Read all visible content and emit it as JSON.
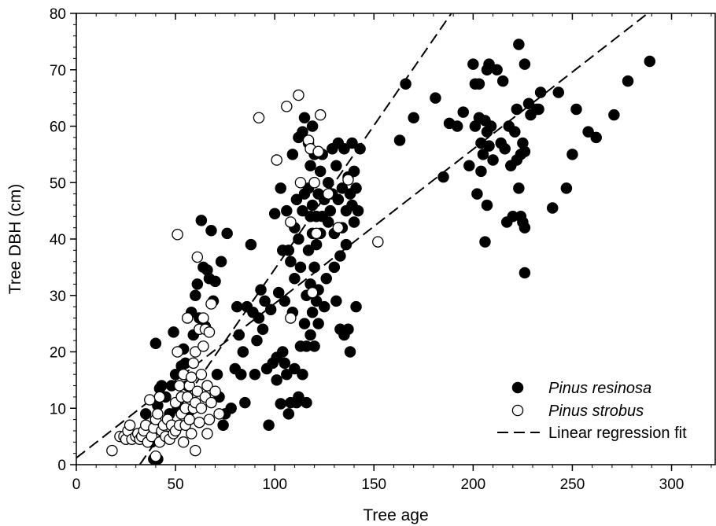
{
  "chart_data": {
    "type": "scatter",
    "xlabel": "Tree age",
    "ylabel": "Tree DBH (cm)",
    "xlim": [
      0,
      322
    ],
    "ylim": [
      0,
      80
    ],
    "x_ticks": [
      0,
      50,
      100,
      150,
      200,
      250,
      300
    ],
    "y_ticks": [
      0,
      10,
      20,
      30,
      40,
      50,
      60,
      70,
      80
    ],
    "legend_position": "bottom-right",
    "series": [
      {
        "name": "Pinus resinosa",
        "marker": "filled-circle",
        "color": "#000000",
        "points": [
          [
            35,
            9
          ],
          [
            37,
            5
          ],
          [
            38,
            4
          ],
          [
            39,
            1
          ],
          [
            40,
            21.5
          ],
          [
            41,
            1
          ],
          [
            41,
            10.5
          ],
          [
            42,
            13.5
          ],
          [
            43,
            14
          ],
          [
            44,
            7
          ],
          [
            45,
            12
          ],
          [
            46,
            5
          ],
          [
            47,
            9
          ],
          [
            48,
            14
          ],
          [
            49,
            23.5
          ],
          [
            50,
            16
          ],
          [
            51,
            10
          ],
          [
            53,
            17.5
          ],
          [
            54,
            20.5
          ],
          [
            55,
            18
          ],
          [
            56,
            14
          ],
          [
            57,
            9.5
          ],
          [
            58,
            27
          ],
          [
            59,
            23
          ],
          [
            60,
            30
          ],
          [
            61,
            32
          ],
          [
            62,
            26
          ],
          [
            63,
            43.3
          ],
          [
            64,
            35
          ],
          [
            65,
            24.5
          ],
          [
            66,
            34.5
          ],
          [
            67,
            33
          ],
          [
            68,
            41.5
          ],
          [
            69,
            29
          ],
          [
            70,
            32.5
          ],
          [
            71,
            16
          ],
          [
            72,
            12
          ],
          [
            73,
            36
          ],
          [
            74,
            7
          ],
          [
            75,
            9
          ],
          [
            76,
            41
          ],
          [
            78,
            10
          ],
          [
            80,
            17
          ],
          [
            81,
            28
          ],
          [
            82,
            23
          ],
          [
            83,
            16
          ],
          [
            84,
            20
          ],
          [
            85,
            11
          ],
          [
            86,
            28
          ],
          [
            88,
            39
          ],
          [
            89,
            27
          ],
          [
            90,
            16
          ],
          [
            91,
            22
          ],
          [
            92,
            26
          ],
          [
            93,
            31
          ],
          [
            94,
            24
          ],
          [
            95,
            29
          ],
          [
            96,
            17
          ],
          [
            97,
            7
          ],
          [
            98,
            27.5
          ],
          [
            99,
            18
          ],
          [
            100,
            44.5
          ],
          [
            101,
            15
          ],
          [
            101,
            19
          ],
          [
            102,
            30.5
          ],
          [
            103,
            10.8
          ],
          [
            103,
            49
          ],
          [
            104,
            20
          ],
          [
            104,
            38
          ],
          [
            105,
            18
          ],
          [
            105,
            29
          ],
          [
            106,
            16
          ],
          [
            106,
            45
          ],
          [
            107,
            9
          ],
          [
            107,
            38
          ],
          [
            108,
            11
          ],
          [
            108,
            36
          ],
          [
            109,
            27
          ],
          [
            109,
            55
          ],
          [
            110,
            17
          ],
          [
            110,
            33
          ],
          [
            110,
            42
          ],
          [
            111,
            11
          ],
          [
            111,
            47
          ],
          [
            112,
            12
          ],
          [
            112,
            40
          ],
          [
            112,
            58
          ],
          [
            113,
            21
          ],
          [
            113,
            35
          ],
          [
            114,
            16
          ],
          [
            114,
            45
          ],
          [
            114,
            59
          ],
          [
            115,
            25
          ],
          [
            115,
            48
          ],
          [
            115,
            61.5
          ],
          [
            116,
            11
          ],
          [
            116,
            21
          ],
          [
            116,
            30
          ],
          [
            117,
            38
          ],
          [
            117,
            49
          ],
          [
            117,
            57
          ],
          [
            118,
            23
          ],
          [
            118,
            32
          ],
          [
            118,
            44
          ],
          [
            118,
            53
          ],
          [
            119,
            27
          ],
          [
            119,
            41
          ],
          [
            119,
            46
          ],
          [
            119,
            60
          ],
          [
            120,
            21
          ],
          [
            120,
            35
          ],
          [
            120,
            50
          ],
          [
            120,
            55
          ],
          [
            121,
            29
          ],
          [
            121,
            39
          ],
          [
            121,
            44
          ],
          [
            122,
            25
          ],
          [
            122,
            31
          ],
          [
            122,
            48
          ],
          [
            123,
            41
          ],
          [
            123,
            52
          ],
          [
            124,
            44
          ],
          [
            124,
            55
          ],
          [
            125,
            28
          ],
          [
            125,
            47
          ],
          [
            126,
            33
          ],
          [
            127,
            43
          ],
          [
            127,
            50
          ],
          [
            128,
            45
          ],
          [
            129,
            48
          ],
          [
            129,
            56
          ],
          [
            130,
            35
          ],
          [
            130,
            41
          ],
          [
            131,
            53
          ],
          [
            131,
            29
          ],
          [
            132,
            47
          ],
          [
            132,
            57
          ],
          [
            133,
            24
          ],
          [
            133,
            37
          ],
          [
            134,
            42
          ],
          [
            134,
            49
          ],
          [
            135,
            56
          ],
          [
            135,
            23
          ],
          [
            136,
            45
          ],
          [
            136,
            39
          ],
          [
            137,
            24
          ],
          [
            137,
            51
          ],
          [
            138,
            48
          ],
          [
            138,
            20
          ],
          [
            139,
            46
          ],
          [
            139,
            57
          ],
          [
            140,
            43
          ],
          [
            140,
            52
          ],
          [
            141,
            28
          ],
          [
            141,
            49
          ],
          [
            142,
            45
          ],
          [
            143,
            56
          ],
          [
            163,
            57.5
          ],
          [
            166,
            67.5
          ],
          [
            170,
            61.5
          ],
          [
            181,
            65
          ],
          [
            185,
            51
          ],
          [
            188,
            60.5
          ],
          [
            192,
            60
          ],
          [
            195,
            62.5
          ],
          [
            198,
            53
          ],
          [
            200,
            71
          ],
          [
            201,
            60
          ],
          [
            201,
            67.5
          ],
          [
            202,
            48
          ],
          [
            203,
            61.5
          ],
          [
            203,
            67.5
          ],
          [
            204,
            52
          ],
          [
            204,
            57
          ],
          [
            205,
            55
          ],
          [
            206,
            61
          ],
          [
            206,
            39.5
          ],
          [
            207,
            70
          ],
          [
            207,
            46
          ],
          [
            207,
            59
          ],
          [
            208,
            71
          ],
          [
            208,
            56.5
          ],
          [
            209,
            60
          ],
          [
            210,
            54
          ],
          [
            212,
            70
          ],
          [
            214,
            57
          ],
          [
            215,
            68
          ],
          [
            216,
            56
          ],
          [
            217,
            43
          ],
          [
            218,
            60
          ],
          [
            219,
            53
          ],
          [
            220,
            44
          ],
          [
            221,
            59
          ],
          [
            222,
            54
          ],
          [
            222,
            63
          ],
          [
            223,
            74.5
          ],
          [
            223,
            49
          ],
          [
            224,
            55
          ],
          [
            224,
            44
          ],
          [
            225,
            57
          ],
          [
            225,
            43
          ],
          [
            226,
            42
          ],
          [
            226,
            71
          ],
          [
            226,
            55.5
          ],
          [
            226,
            34
          ],
          [
            228,
            64
          ],
          [
            229,
            62
          ],
          [
            232,
            63
          ],
          [
            233,
            63
          ],
          [
            234,
            66
          ],
          [
            240,
            45.5
          ],
          [
            243,
            66
          ],
          [
            247,
            49
          ],
          [
            250,
            55
          ],
          [
            252,
            63
          ],
          [
            258,
            59
          ],
          [
            262,
            58
          ],
          [
            271,
            62
          ],
          [
            278,
            68
          ],
          [
            289,
            71.5
          ]
        ]
      },
      {
        "name": "Pinus strobus",
        "marker": "open-circle",
        "color": "#000000",
        "points": [
          [
            18,
            2.5
          ],
          [
            22,
            5
          ],
          [
            24,
            5
          ],
          [
            25,
            4.5
          ],
          [
            26,
            6
          ],
          [
            27,
            7
          ],
          [
            28,
            4.5
          ],
          [
            30,
            5
          ],
          [
            31,
            5.5
          ],
          [
            32,
            4.5
          ],
          [
            33,
            5
          ],
          [
            34,
            6
          ],
          [
            35,
            7
          ],
          [
            36,
            4
          ],
          [
            37,
            11.5
          ],
          [
            38,
            5
          ],
          [
            39,
            6.5
          ],
          [
            40,
            1.5
          ],
          [
            40,
            8
          ],
          [
            41,
            9
          ],
          [
            42,
            4
          ],
          [
            42,
            12
          ],
          [
            43,
            6
          ],
          [
            44,
            7
          ],
          [
            45,
            5
          ],
          [
            46,
            8
          ],
          [
            47,
            4.5
          ],
          [
            48,
            7
          ],
          [
            49,
            5.5
          ],
          [
            50,
            6
          ],
          [
            50,
            11
          ],
          [
            51,
            20
          ],
          [
            51,
            40.8
          ],
          [
            52,
            7
          ],
          [
            52,
            14
          ],
          [
            53,
            9
          ],
          [
            53,
            12
          ],
          [
            54,
            4
          ],
          [
            54,
            16
          ],
          [
            55,
            10
          ],
          [
            55,
            7
          ],
          [
            56,
            12
          ],
          [
            56,
            26
          ],
          [
            57,
            8
          ],
          [
            57,
            14
          ],
          [
            58,
            15.5
          ],
          [
            58,
            5.5
          ],
          [
            59,
            10
          ],
          [
            59,
            18
          ],
          [
            60,
            2.5
          ],
          [
            60,
            11
          ],
          [
            60,
            20
          ],
          [
            61,
            13
          ],
          [
            61,
            36.8
          ],
          [
            62,
            7.5
          ],
          [
            62,
            24
          ],
          [
            63,
            16
          ],
          [
            63,
            10
          ],
          [
            64,
            26
          ],
          [
            64,
            21
          ],
          [
            65,
            12
          ],
          [
            65,
            24
          ],
          [
            66,
            5.5
          ],
          [
            66,
            14
          ],
          [
            67,
            8
          ],
          [
            67,
            23.5
          ],
          [
            68,
            28.5
          ],
          [
            68,
            11
          ],
          [
            70,
            13
          ],
          [
            72,
            9
          ],
          [
            92,
            61.5
          ],
          [
            101,
            54
          ],
          [
            106,
            63.5
          ],
          [
            108,
            26
          ],
          [
            108,
            43
          ],
          [
            112,
            65.5
          ],
          [
            113,
            50
          ],
          [
            117,
            57.5
          ],
          [
            118,
            56
          ],
          [
            119,
            30.5
          ],
          [
            120,
            50
          ],
          [
            121,
            41
          ],
          [
            122,
            55.5
          ],
          [
            123,
            62
          ],
          [
            127,
            48
          ],
          [
            132,
            42
          ],
          [
            137,
            50.5
          ],
          [
            152,
            39.5
          ]
        ]
      }
    ],
    "regression_lines": [
      {
        "name": "Linear regression fit",
        "style": "dashed",
        "from": [
          0,
          1.2
        ],
        "to": [
          288,
          80
        ]
      },
      {
        "name": "Linear regression fit",
        "style": "dashed",
        "from": [
          32,
          0
        ],
        "to": [
          189,
          80
        ]
      }
    ]
  },
  "legend": {
    "items": [
      {
        "label": "Pinus resinosa",
        "marker": "filled-circle"
      },
      {
        "label": "Pinus strobus",
        "marker": "open-circle"
      },
      {
        "label": "Linear regression fit",
        "marker": "dashed-line"
      }
    ]
  }
}
